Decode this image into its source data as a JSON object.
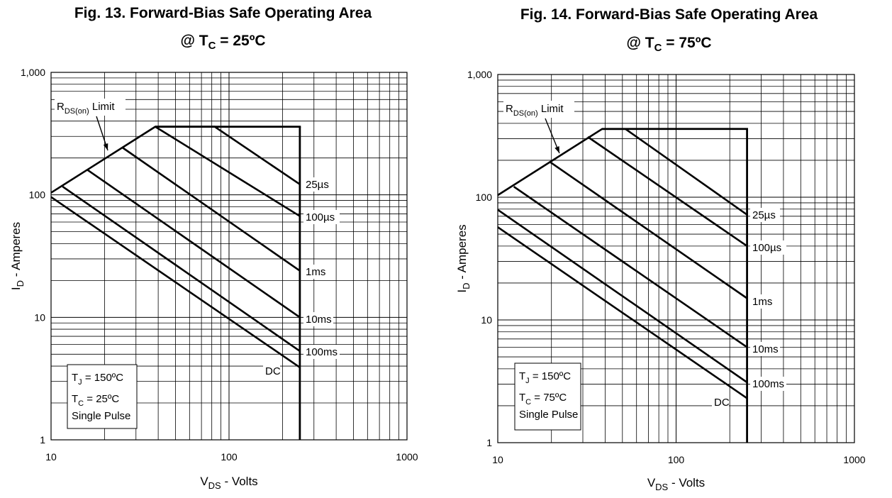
{
  "chart_data": [
    {
      "type": "line",
      "title_line1": "Fig. 13. Forward-Bias Safe Operating Area",
      "title_line2": {
        "prefix": "@ T",
        "sub": "C",
        "suffix": " = 25ºC"
      },
      "x_scale": "log",
      "y_scale": "log",
      "xlim": [
        10,
        1000
      ],
      "ylim": [
        1,
        1000
      ],
      "x_ticks": [
        "10",
        "100",
        "1000"
      ],
      "y_ticks": [
        "1",
        "10",
        "100",
        "1,000"
      ],
      "xlabel": {
        "main": "V",
        "sub": "DS",
        "rest": " - Volts"
      },
      "ylabel": {
        "main": "I",
        "sub": "D",
        "rest": " - Amperes"
      },
      "grid": true,
      "rds_label": {
        "main": "R",
        "sub": "DS(on)",
        "rest": " Limit"
      },
      "conditions": [
        {
          "main": "T",
          "sub": "J",
          "rest": " = 150ºC"
        },
        {
          "main": "T",
          "sub": "C",
          "rest": " = 25ºC"
        },
        {
          "main": "Single Pulse",
          "sub": "",
          "rest": ""
        }
      ],
      "series": [
        {
          "name": "25µs",
          "x": [
            10,
            38.5,
            83,
            250
          ],
          "y": [
            104,
            360,
            360,
            122
          ]
        },
        {
          "name": "100µs",
          "x": [
            38.5,
            250
          ],
          "y": [
            360,
            67
          ]
        },
        {
          "name": "1ms",
          "x": [
            25,
            250
          ],
          "y": [
            245,
            24
          ]
        },
        {
          "name": "10ms",
          "x": [
            16,
            250
          ],
          "y": [
            160,
            10
          ]
        },
        {
          "name": "100ms",
          "x": [
            11.6,
            250
          ],
          "y": [
            117,
            5.3
          ]
        },
        {
          "name": "DC",
          "x": [
            10,
            250
          ],
          "y": [
            96,
            3.9
          ]
        }
      ],
      "vds_limit": 250
    },
    {
      "type": "line",
      "title_line1": "Fig. 14. Forward-Bias Safe Operating Area",
      "title_line2": {
        "prefix": "@ T",
        "sub": "C",
        "suffix": " = 75ºC"
      },
      "x_scale": "log",
      "y_scale": "log",
      "xlim": [
        10,
        1000
      ],
      "ylim": [
        1,
        1000
      ],
      "x_ticks": [
        "10",
        "100",
        "1000"
      ],
      "y_ticks": [
        "1",
        "10",
        "100",
        "1,000"
      ],
      "xlabel": {
        "main": "V",
        "sub": "DS",
        "rest": " - Volts"
      },
      "ylabel": {
        "main": "I",
        "sub": "D",
        "rest": " - Amperes"
      },
      "grid": true,
      "rds_label": {
        "main": "R",
        "sub": "DS(on)",
        "rest": " Limit"
      },
      "conditions": [
        {
          "main": "T",
          "sub": "J",
          "rest": " = 150ºC"
        },
        {
          "main": "T",
          "sub": "C",
          "rest": " = 75ºC"
        },
        {
          "main": "Single Pulse",
          "sub": "",
          "rest": ""
        }
      ],
      "series": [
        {
          "name": "25µs",
          "x": [
            10,
            38.5,
            52,
            250
          ],
          "y": [
            104,
            360,
            360,
            72
          ]
        },
        {
          "name": "100µs",
          "x": [
            32,
            250
          ],
          "y": [
            310,
            40
          ]
        },
        {
          "name": "1ms",
          "x": [
            19.5,
            250
          ],
          "y": [
            195,
            15
          ]
        },
        {
          "name": "10ms",
          "x": [
            12.3,
            250
          ],
          "y": [
            122,
            6
          ]
        },
        {
          "name": "100ms",
          "x": [
            10,
            250
          ],
          "y": [
            79,
            3.1
          ]
        },
        {
          "name": "DC",
          "x": [
            10,
            250
          ],
          "y": [
            57,
            2.3
          ]
        }
      ],
      "vds_limit": 250
    }
  ]
}
